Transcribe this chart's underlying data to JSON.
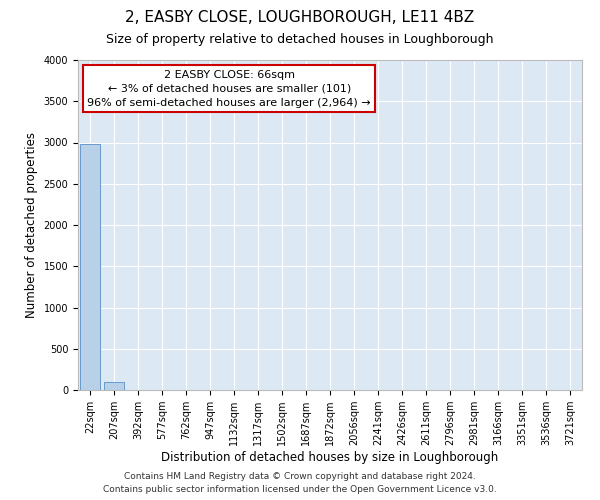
{
  "title": "2, EASBY CLOSE, LOUGHBOROUGH, LE11 4BZ",
  "subtitle": "Size of property relative to detached houses in Loughborough",
  "xlabel": "Distribution of detached houses by size in Loughborough",
  "ylabel": "Number of detached properties",
  "categories": [
    "22sqm",
    "207sqm",
    "392sqm",
    "577sqm",
    "762sqm",
    "947sqm",
    "1132sqm",
    "1317sqm",
    "1502sqm",
    "1687sqm",
    "1872sqm",
    "2056sqm",
    "2241sqm",
    "2426sqm",
    "2611sqm",
    "2796sqm",
    "2981sqm",
    "3166sqm",
    "3351sqm",
    "3536sqm",
    "3721sqm"
  ],
  "values": [
    2985,
    101,
    5,
    2,
    1,
    1,
    1,
    0,
    1,
    0,
    0,
    1,
    0,
    0,
    0,
    0,
    0,
    0,
    0,
    0,
    0
  ],
  "bar_color": "#b8d0e8",
  "bar_edge_color": "#6699cc",
  "background_color": "#dce9f5",
  "grid_color": "#ffffff",
  "annotation_line1": "2 EASBY CLOSE: 66sqm",
  "annotation_line2": "← 3% of detached houses are smaller (101)",
  "annotation_line3": "96% of semi-detached houses are larger (2,964) →",
  "annotation_box_color": "#ffffff",
  "annotation_border_color": "#cc0000",
  "ylim": [
    0,
    4000
  ],
  "yticks": [
    0,
    500,
    1000,
    1500,
    2000,
    2500,
    3000,
    3500,
    4000
  ],
  "footnote1": "Contains HM Land Registry data © Crown copyright and database right 2024.",
  "footnote2": "Contains public sector information licensed under the Open Government Licence v3.0.",
  "title_fontsize": 11,
  "subtitle_fontsize": 9,
  "tick_fontsize": 7,
  "ylabel_fontsize": 8.5,
  "xlabel_fontsize": 8.5,
  "annotation_fontsize": 8,
  "footnote_fontsize": 6.5
}
